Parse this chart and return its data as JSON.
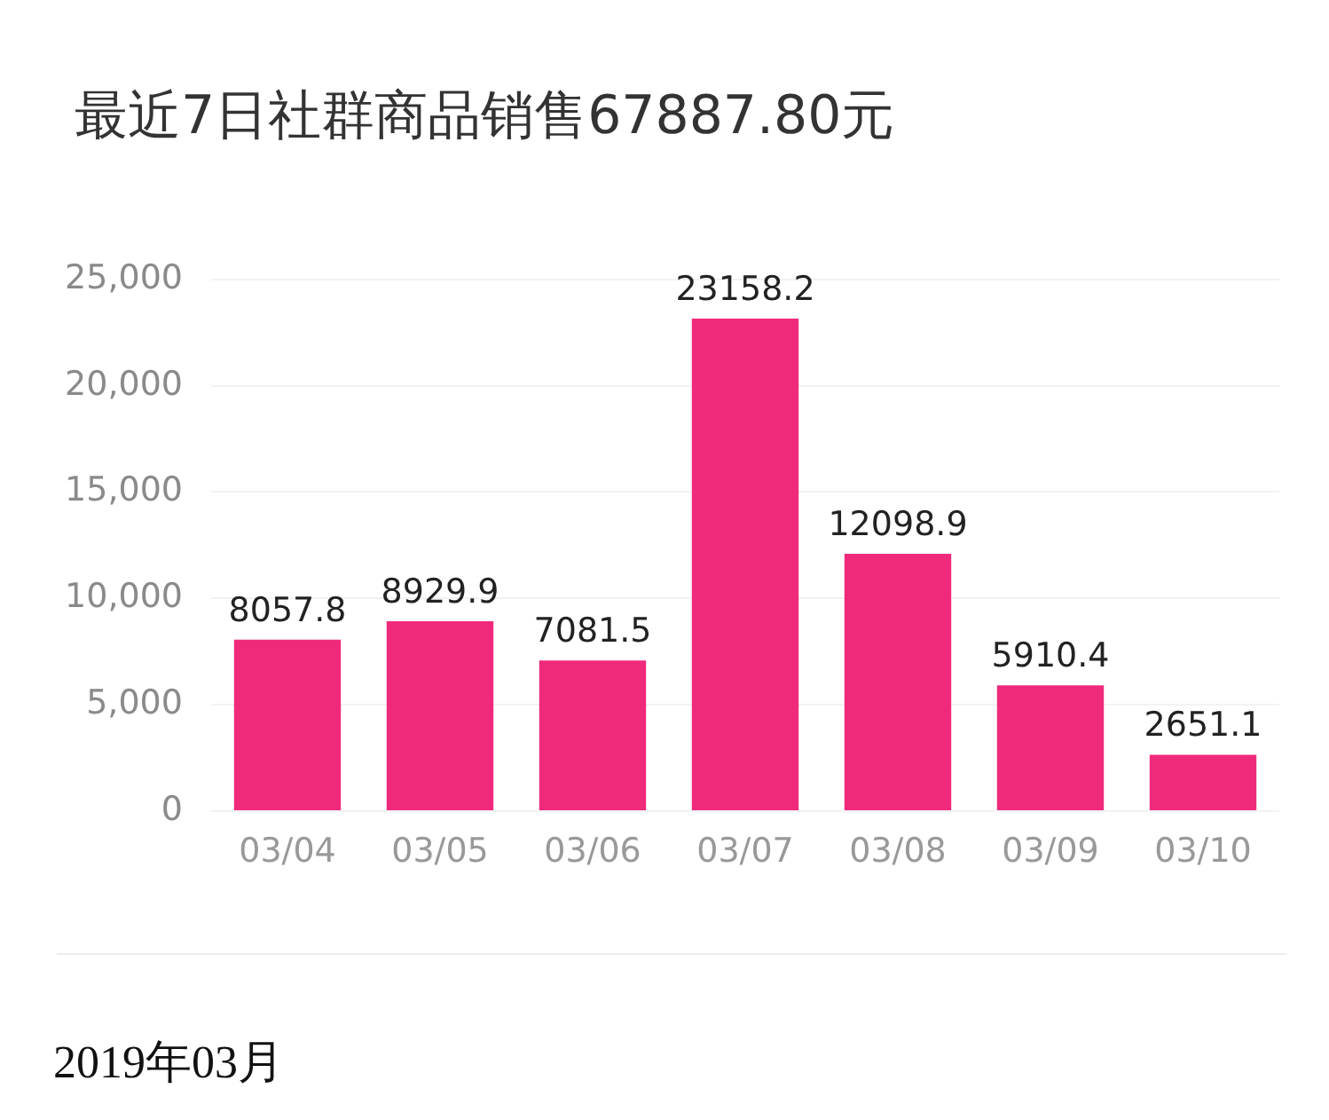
{
  "chart_data": {
    "type": "bar",
    "title": "最近7日社群商品销售67887.80元",
    "categories": [
      "03/04",
      "03/05",
      "03/06",
      "03/07",
      "03/08",
      "03/09",
      "03/10"
    ],
    "values": [
      8057.8,
      8929.9,
      7081.5,
      23158.2,
      12098.9,
      5910.4,
      2651.1
    ],
    "color": "#f02a7b",
    "ylim": [
      0,
      25000
    ],
    "yticks": [
      0,
      {
        "value": 5000,
        "label": "5,000"
      },
      {
        "value": 10000,
        "label": "10,000"
      },
      {
        "value": 15000,
        "label": "15,000"
      },
      {
        "value": 20000,
        "label": "20,000"
      },
      {
        "value": 25000,
        "label": "25,000"
      }
    ],
    "grid": "y",
    "data_labels": true,
    "annotations": [
      "2019年03月"
    ]
  }
}
